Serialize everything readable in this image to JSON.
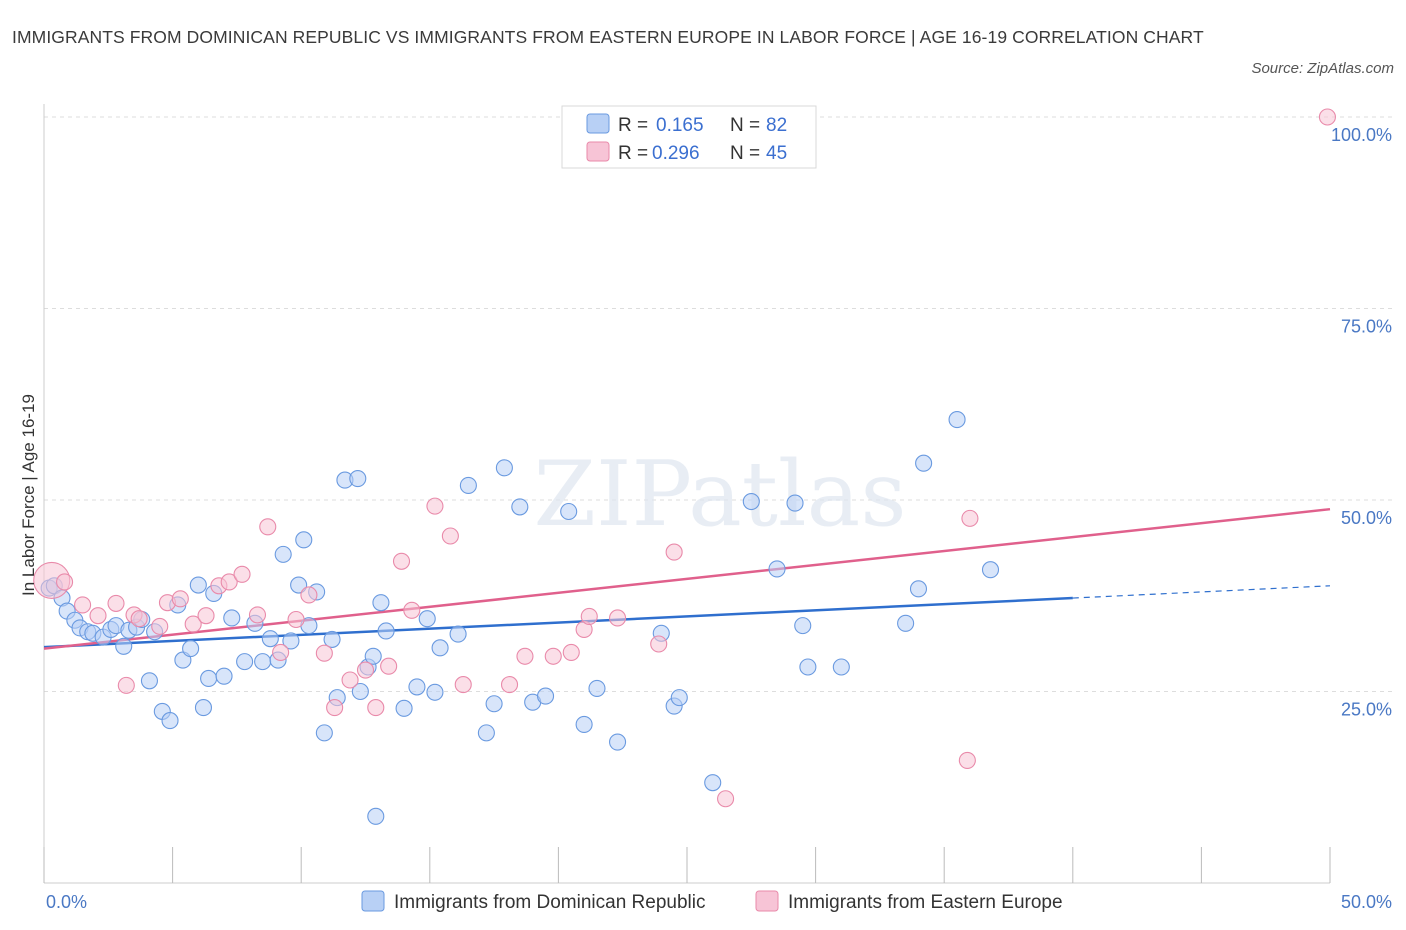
{
  "title": "IMMIGRANTS FROM DOMINICAN REPUBLIC VS IMMIGRANTS FROM EASTERN EUROPE IN LABOR FORCE | AGE 16-19 CORRELATION CHART",
  "source": "Source: ZipAtlas.com",
  "watermark": "ZIPatlas",
  "colors": {
    "blue_fill": "#b8d0f5",
    "blue_stroke": "#6a9ae0",
    "blue_line": "#2f6fce",
    "pink_fill": "#f7c4d6",
    "pink_stroke": "#e98aaa",
    "pink_line": "#e0608c",
    "grid": "#dddddd",
    "tick_label": "#4a78c4"
  },
  "chart_data": {
    "type": "scatter",
    "title": "IMMIGRANTS FROM DOMINICAN REPUBLIC VS IMMIGRANTS FROM EASTERN EUROPE IN LABOR FORCE | AGE 16-19 CORRELATION CHART",
    "ylabel": "In Labor Force | Age 16-19",
    "xlim": [
      0,
      50
    ],
    "ylim": [
      0,
      100
    ],
    "x_tick_labels": [
      "0.0%",
      "50.0%"
    ],
    "y_tick_labels": [
      "25.0%",
      "50.0%",
      "75.0%",
      "100.0%"
    ],
    "y_ticks": [
      25,
      50,
      75,
      100
    ],
    "x_minor_ticks": [
      0,
      5,
      10,
      15,
      20,
      25,
      30,
      35,
      40,
      45,
      50
    ],
    "legend": [
      {
        "r_label": "R =",
        "r_value": "0.165",
        "n_label": "N =",
        "n_value": "82"
      },
      {
        "r_label": "R =",
        "r_value": "0.296",
        "n_label": "N =",
        "n_value": "45"
      }
    ],
    "series": [
      {
        "name": "Immigrants from Dominican Republic",
        "color": "blue",
        "trend": {
          "x0": 0,
          "y0": 30.8,
          "x1": 40,
          "y1": 37.2,
          "dash_to_x": 50,
          "dash_to_y": 38.8
        },
        "points": [
          [
            0.2,
            38.5
          ],
          [
            0.4,
            38.8
          ],
          [
            0.7,
            37.2
          ],
          [
            0.9,
            35.5
          ],
          [
            1.2,
            34.3
          ],
          [
            1.4,
            33.3
          ],
          [
            1.7,
            32.8
          ],
          [
            1.9,
            32.6
          ],
          [
            2.3,
            32.1
          ],
          [
            2.6,
            33.1
          ],
          [
            2.8,
            33.6
          ],
          [
            3.1,
            30.9
          ],
          [
            3.3,
            33.0
          ],
          [
            3.6,
            33.4
          ],
          [
            3.8,
            34.4
          ],
          [
            4.1,
            26.4
          ],
          [
            4.3,
            32.8
          ],
          [
            4.6,
            22.4
          ],
          [
            4.9,
            21.2
          ],
          [
            5.2,
            36.3
          ],
          [
            5.4,
            29.1
          ],
          [
            5.7,
            30.6
          ],
          [
            6.0,
            38.9
          ],
          [
            6.2,
            22.9
          ],
          [
            6.4,
            26.7
          ],
          [
            6.6,
            37.8
          ],
          [
            7.0,
            27.0
          ],
          [
            7.3,
            34.6
          ],
          [
            7.8,
            28.9
          ],
          [
            8.2,
            33.9
          ],
          [
            8.5,
            28.9
          ],
          [
            8.8,
            31.9
          ],
          [
            9.1,
            29.1
          ],
          [
            9.3,
            42.9
          ],
          [
            9.6,
            31.6
          ],
          [
            9.9,
            38.9
          ],
          [
            10.1,
            44.8
          ],
          [
            10.3,
            33.6
          ],
          [
            10.6,
            38.0
          ],
          [
            10.9,
            19.6
          ],
          [
            11.2,
            31.8
          ],
          [
            11.4,
            24.2
          ],
          [
            11.7,
            52.6
          ],
          [
            12.2,
            52.8
          ],
          [
            12.3,
            25.0
          ],
          [
            12.6,
            28.2
          ],
          [
            12.8,
            29.6
          ],
          [
            12.9,
            8.7
          ],
          [
            13.1,
            36.6
          ],
          [
            13.3,
            32.9
          ],
          [
            14.0,
            22.8
          ],
          [
            14.5,
            25.6
          ],
          [
            14.9,
            34.5
          ],
          [
            15.2,
            24.9
          ],
          [
            15.4,
            30.7
          ],
          [
            16.1,
            32.5
          ],
          [
            16.5,
            51.9
          ],
          [
            17.2,
            19.6
          ],
          [
            17.5,
            23.4
          ],
          [
            17.9,
            54.2
          ],
          [
            18.5,
            49.1
          ],
          [
            19.0,
            23.6
          ],
          [
            19.5,
            24.4
          ],
          [
            20.4,
            48.5
          ],
          [
            21.0,
            20.7
          ],
          [
            21.5,
            25.4
          ],
          [
            22.3,
            18.4
          ],
          [
            24.0,
            32.6
          ],
          [
            24.5,
            23.1
          ],
          [
            24.7,
            24.2
          ],
          [
            26.0,
            13.1
          ],
          [
            27.5,
            49.8
          ],
          [
            28.5,
            41.0
          ],
          [
            29.2,
            49.6
          ],
          [
            29.5,
            33.6
          ],
          [
            29.7,
            28.2
          ],
          [
            31.0,
            28.2
          ],
          [
            33.5,
            33.9
          ],
          [
            34.0,
            38.4
          ],
          [
            34.2,
            54.8
          ],
          [
            35.5,
            60.5
          ],
          [
            36.8,
            40.9
          ]
        ]
      },
      {
        "name": "Immigrants from Eastern Europe",
        "color": "pink",
        "trend": {
          "x0": 0,
          "y0": 30.6,
          "x1": 50,
          "y1": 48.8
        },
        "points": [
          [
            0.3,
            39.5
          ],
          [
            0.8,
            39.3
          ],
          [
            1.5,
            36.3
          ],
          [
            2.1,
            34.9
          ],
          [
            2.8,
            36.5
          ],
          [
            3.2,
            25.8
          ],
          [
            3.5,
            35.0
          ],
          [
            3.7,
            34.5
          ],
          [
            4.5,
            33.5
          ],
          [
            4.8,
            36.6
          ],
          [
            5.3,
            37.1
          ],
          [
            5.8,
            33.8
          ],
          [
            6.3,
            34.9
          ],
          [
            6.8,
            38.8
          ],
          [
            7.2,
            39.3
          ],
          [
            7.7,
            40.3
          ],
          [
            8.3,
            35.0
          ],
          [
            8.7,
            46.5
          ],
          [
            9.2,
            30.1
          ],
          [
            9.8,
            34.4
          ],
          [
            10.3,
            37.6
          ],
          [
            10.9,
            30.0
          ],
          [
            11.3,
            22.9
          ],
          [
            11.9,
            26.5
          ],
          [
            12.5,
            27.8
          ],
          [
            12.9,
            22.9
          ],
          [
            13.4,
            28.3
          ],
          [
            13.9,
            42.0
          ],
          [
            14.3,
            35.6
          ],
          [
            15.2,
            49.2
          ],
          [
            15.8,
            45.3
          ],
          [
            16.3,
            25.9
          ],
          [
            18.1,
            25.9
          ],
          [
            18.7,
            29.6
          ],
          [
            19.8,
            29.6
          ],
          [
            20.5,
            30.1
          ],
          [
            21.0,
            33.1
          ],
          [
            21.2,
            34.8
          ],
          [
            22.3,
            34.6
          ],
          [
            23.9,
            31.2
          ],
          [
            24.5,
            43.2
          ],
          [
            26.5,
            11.0
          ],
          [
            36.0,
            47.6
          ],
          [
            35.9,
            16.0
          ],
          [
            49.9,
            100.0
          ]
        ]
      }
    ]
  }
}
